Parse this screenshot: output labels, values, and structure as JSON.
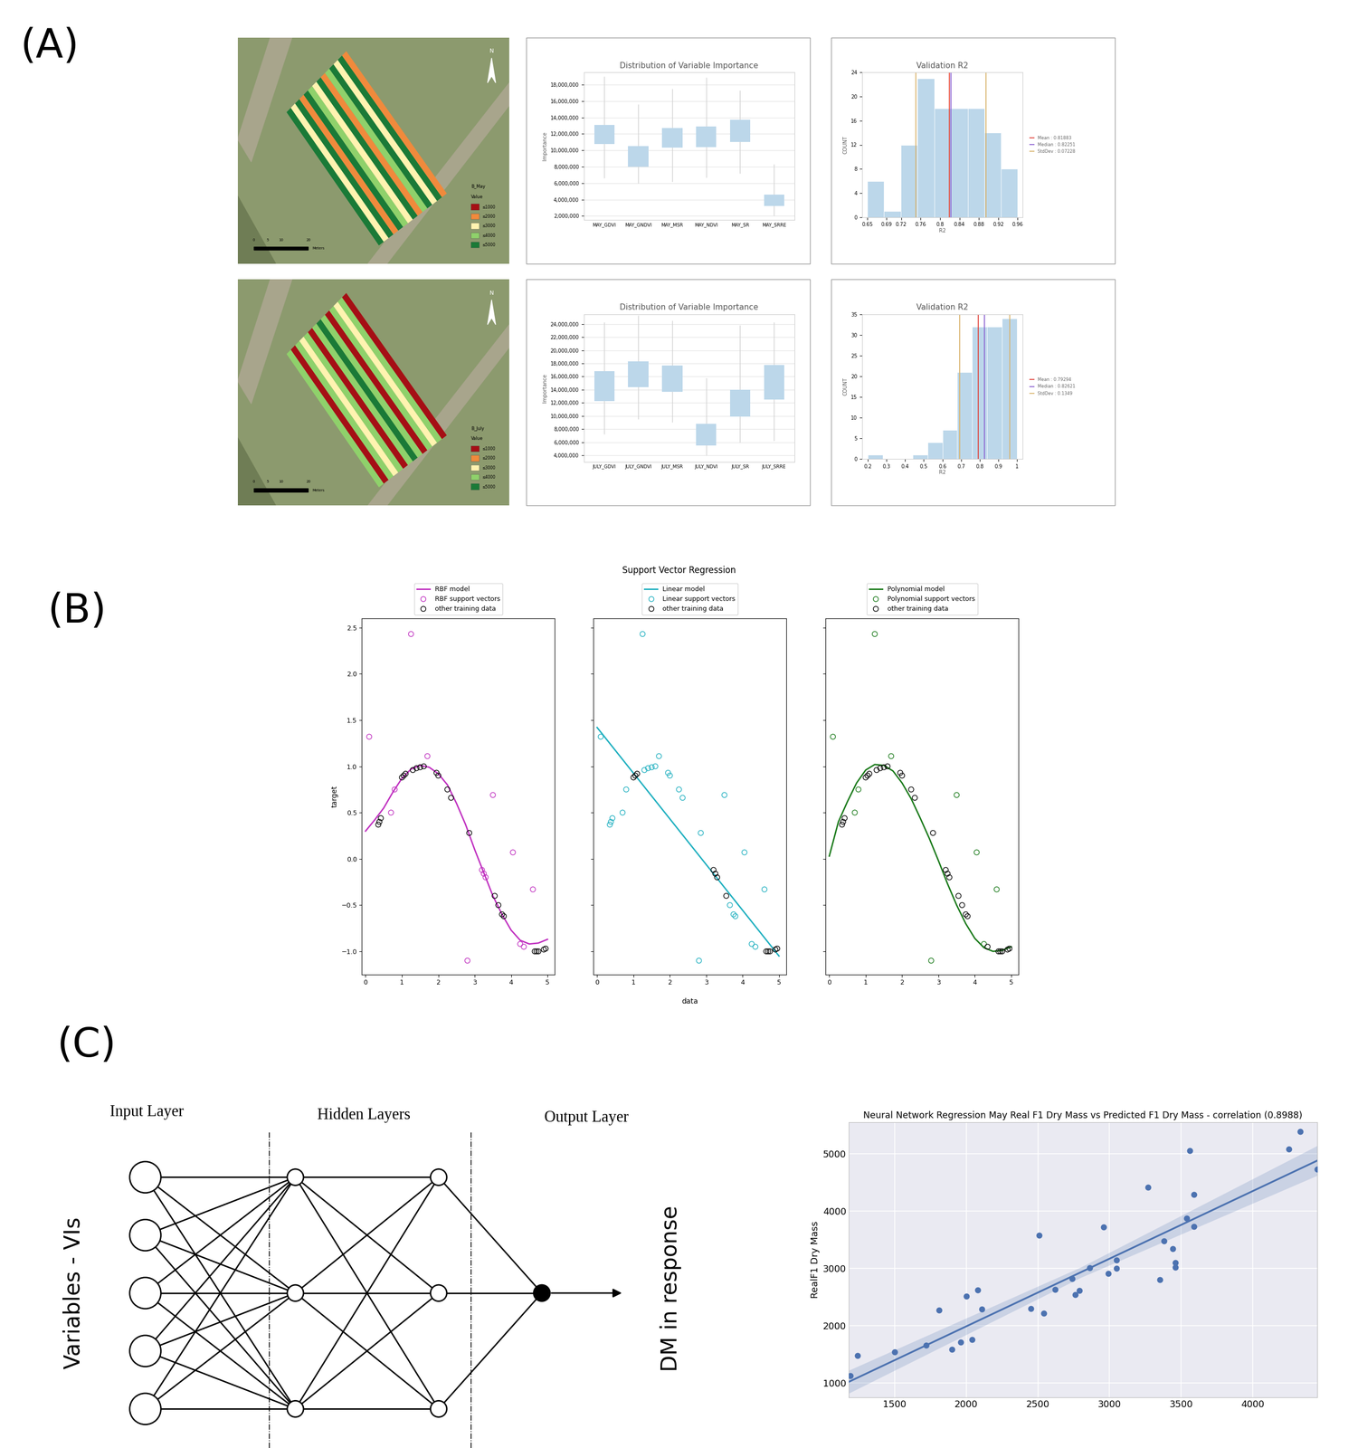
{
  "panel_labels": [
    "(A)",
    "(B)",
    "(C)"
  ],
  "maps": [
    {
      "legend_title": "B_May",
      "value_title": "Value",
      "north": "N",
      "scale_bar": {
        "ticks": [
          0,
          5,
          10,
          20
        ],
        "unit": "Meters"
      },
      "classes": [
        {
          "label": "≤1000",
          "color": "#a50f15"
        },
        {
          "label": "≤2000",
          "color": "#f08a3c"
        },
        {
          "label": "≤3000",
          "color": "#fff3b0"
        },
        {
          "label": "≤4000",
          "color": "#8fd16b"
        },
        {
          "label": "≤5000",
          "color": "#1a7a37"
        }
      ]
    },
    {
      "legend_title": "B_July",
      "value_title": "Value",
      "north": "N",
      "scale_bar": {
        "ticks": [
          0,
          5,
          10,
          20
        ],
        "unit": "Meters"
      },
      "classes": [
        {
          "label": "≤1000",
          "color": "#a50f15"
        },
        {
          "label": "≤2000",
          "color": "#f08a3c"
        },
        {
          "label": "≤3000",
          "color": "#fff3b0"
        },
        {
          "label": "≤4000",
          "color": "#8fd16b"
        },
        {
          "label": "≤5000",
          "color": "#1a7a37"
        }
      ]
    }
  ],
  "svr_title": "Support Vector Regression",
  "chart_data": [
    {
      "type": "box",
      "title": "Distribution of Variable Importance",
      "ylabel": "Importance",
      "categories": [
        "MAY_GDVI",
        "MAY_GNDVI",
        "MAY_MSR",
        "MAY_NDVI",
        "MAY_SR",
        "MAY_SRRE"
      ],
      "q1": [
        10800000,
        8000000,
        10300000,
        10400000,
        11000000,
        3200000
      ],
      "q3": [
        13100000,
        10500000,
        12700000,
        12900000,
        13700000,
        4600000
      ],
      "whisker_low": [
        6600000,
        6000000,
        6200000,
        6700000,
        7200000,
        2000000
      ],
      "whisker_high": [
        19000000,
        15600000,
        17500000,
        18900000,
        17300000,
        8300000
      ],
      "color": "#bcd7ea",
      "grid": true,
      "ylim": [
        1500000,
        19500000
      ],
      "yticks": [
        {
          "value": 2000000,
          "label": "2,000,000"
        },
        {
          "value": 4000000,
          "label": "4,000,000"
        },
        {
          "value": 6000000,
          "label": "6,000,000"
        },
        {
          "value": 8000000,
          "label": "8,000,000"
        },
        {
          "value": 10000000,
          "label": "10,000,000"
        },
        {
          "value": 12000000,
          "label": "12,000,000"
        },
        {
          "value": 14000000,
          "label": "14,000,000"
        },
        {
          "value": 16000000,
          "label": "16,000,000"
        },
        {
          "value": 18000000,
          "label": "18,000,000"
        }
      ]
    },
    {
      "type": "histogram",
      "title": "Validation R2",
      "xlabel": "R2",
      "ylabel": "COUNT",
      "bins": [
        0.65,
        0.684,
        0.719,
        0.753,
        0.788,
        0.822,
        0.857,
        0.891,
        0.926,
        0.96
      ],
      "counts": [
        6,
        1,
        12,
        23,
        18,
        18,
        18,
        14,
        8
      ],
      "color": "#bcd7ea",
      "grid": false,
      "xlim": [
        0.64,
        0.97
      ],
      "xticks": [
        0.65,
        0.69,
        0.72,
        0.76,
        0.8,
        0.84,
        0.88,
        0.92,
        0.96
      ],
      "ylim": [
        0,
        24
      ],
      "yticks": [
        0,
        4,
        8,
        12,
        16,
        20,
        24
      ],
      "legend": "right",
      "reference_lines": [
        {
          "name": "Mean : 0.81883",
          "values": [
            0.81883
          ],
          "color": "#e0423a"
        },
        {
          "name": "Median : 0.82251",
          "values": [
            0.82251
          ],
          "color": "#8a5fd0"
        },
        {
          "name": "StdDev : 0.07228",
          "values": [
            0.75023,
            0.89479
          ],
          "color": "#d8b26a"
        }
      ]
    },
    {
      "type": "box",
      "title": "Distribution of Variable Importance",
      "ylabel": "Importance",
      "categories": [
        "JULY_GDVI",
        "JULY_GNDVI",
        "JULY_MSR",
        "JULY_NDVI",
        "JULY_SR",
        "JULY_SRRE"
      ],
      "q1": [
        12300000,
        14400000,
        13700000,
        5500000,
        9900000,
        12500000
      ],
      "q3": [
        16800000,
        18300000,
        17700000,
        8800000,
        14000000,
        17800000
      ],
      "whisker_low": [
        7200000,
        9500000,
        9000000,
        4000000,
        6000000,
        6200000
      ],
      "whisker_high": [
        24300000,
        25300000,
        24500000,
        15800000,
        23800000,
        24300000
      ],
      "color": "#bcd7ea",
      "grid": true,
      "ylim": [
        3000000,
        25500000
      ],
      "yticks": [
        {
          "value": 4000000,
          "label": "4,000,000"
        },
        {
          "value": 6000000,
          "label": "6,000,000"
        },
        {
          "value": 8000000,
          "label": "8,000,000"
        },
        {
          "value": 10000000,
          "label": "10,000,000"
        },
        {
          "value": 12000000,
          "label": "12,000,000"
        },
        {
          "value": 14000000,
          "label": "14,000,000"
        },
        {
          "value": 16000000,
          "label": "16,000,000"
        },
        {
          "value": 18000000,
          "label": "18,000,000"
        },
        {
          "value": 20000000,
          "label": "20,000,000"
        },
        {
          "value": 22000000,
          "label": "22,000,000"
        },
        {
          "value": 24000000,
          "label": "24,000,000"
        }
      ]
    },
    {
      "type": "histogram",
      "title": "Validation R2",
      "xlabel": "R2",
      "ylabel": "COUNT",
      "bins": [
        0.2,
        0.28,
        0.36,
        0.44,
        0.52,
        0.6,
        0.68,
        0.76,
        0.84,
        0.92,
        1.0
      ],
      "counts": [
        1,
        0,
        0,
        1,
        4,
        7,
        21,
        32,
        32,
        34
      ],
      "color": "#bcd7ea",
      "grid": false,
      "xlim": [
        0.17,
        1.03
      ],
      "xticks": [
        0.2,
        0.3,
        0.4,
        0.5,
        0.6,
        0.7,
        0.8,
        0.9,
        1
      ],
      "ylim": [
        0,
        35
      ],
      "yticks": [
        0,
        5,
        10,
        15,
        20,
        25,
        30,
        35
      ],
      "legend": "right",
      "reference_lines": [
        {
          "name": "Mean : 0.79294",
          "values": [
            0.79294
          ],
          "color": "#e0423a"
        },
        {
          "name": "Median : 0.82621",
          "values": [
            0.82621
          ],
          "color": "#8a5fd0"
        },
        {
          "name": "StdDev : 0.1349",
          "values": [
            0.69131,
            0.96111
          ],
          "color": "#d8b26a"
        }
      ]
    },
    {
      "type": "scatter",
      "ylabel": "target",
      "color": "#c030c0",
      "legend": "top",
      "grid": false,
      "model": {
        "name": "RBF model",
        "x": [
          0,
          0.25,
          0.5,
          0.75,
          1.0,
          1.25,
          1.5,
          1.75,
          2.0,
          2.25,
          2.5,
          2.75,
          3.0,
          3.25,
          3.5,
          3.75,
          4.0,
          4.25,
          4.5,
          4.75,
          5.0
        ],
        "y": [
          0.3,
          0.42,
          0.55,
          0.72,
          0.87,
          0.97,
          1.01,
          0.99,
          0.92,
          0.8,
          0.6,
          0.37,
          0.1,
          -0.15,
          -0.4,
          -0.6,
          -0.77,
          -0.88,
          -0.92,
          -0.91,
          -0.87
        ]
      },
      "support_vectors": {
        "name": "RBF support vectors",
        "x": [
          0.1,
          0.7,
          0.8,
          1.25,
          1.7,
          2.8,
          3.2,
          3.25,
          3.3,
          3.5,
          4.05,
          4.25,
          4.35,
          4.6
        ],
        "y": [
          1.32,
          0.5,
          0.75,
          2.43,
          1.11,
          -1.1,
          -0.12,
          -0.16,
          -0.2,
          0.69,
          0.07,
          -0.92,
          -0.95,
          -0.33
        ]
      },
      "other_training_data": {
        "name": "other training data",
        "x": [
          0.35,
          0.38,
          0.42,
          1.0,
          1.05,
          1.1,
          1.3,
          1.4,
          1.5,
          1.6,
          1.95,
          2.0,
          2.25,
          2.35,
          2.85,
          3.55,
          3.65,
          3.75,
          3.8,
          4.65,
          4.7,
          4.75,
          4.9,
          4.95
        ],
        "y": [
          0.37,
          0.4,
          0.44,
          0.88,
          0.9,
          0.92,
          0.96,
          0.98,
          0.99,
          1.0,
          0.93,
          0.9,
          0.75,
          0.66,
          0.28,
          -0.4,
          -0.5,
          -0.6,
          -0.62,
          -1.0,
          -1.0,
          -1.0,
          -0.98,
          -0.97
        ]
      },
      "xlim": [
        -0.1,
        5.2
      ],
      "xticks": [
        0,
        1,
        2,
        3,
        4,
        5
      ],
      "ylim": [
        -1.25,
        2.6
      ],
      "yticks": [
        {
          "value": -1.0,
          "label": "−1.0"
        },
        {
          "value": -0.5,
          "label": "−0.5"
        },
        0.0,
        0.5,
        1.0,
        1.5,
        2.0,
        2.5
      ]
    },
    {
      "type": "scatter",
      "xlabel": "data",
      "color": "#20b0c0",
      "legend": "top",
      "grid": false,
      "tick_labels": "x",
      "model": {
        "name": "Linear model",
        "x": [
          0,
          5
        ],
        "y": [
          1.42,
          -1.05
        ]
      },
      "support_vectors": {
        "name": "Linear support vectors",
        "x": [
          0.1,
          0.35,
          0.38,
          0.42,
          0.7,
          0.8,
          1.25,
          1.3,
          1.4,
          1.5,
          1.6,
          1.7,
          1.95,
          2.0,
          2.25,
          2.35,
          2.8,
          2.85,
          3.5,
          3.65,
          3.75,
          3.8,
          4.05,
          4.25,
          4.35,
          4.6
        ],
        "y": [
          1.32,
          0.37,
          0.4,
          0.44,
          0.5,
          0.75,
          2.43,
          0.96,
          0.98,
          0.99,
          1.0,
          1.11,
          0.93,
          0.9,
          0.75,
          0.66,
          -1.1,
          0.28,
          0.69,
          -0.5,
          -0.6,
          -0.62,
          0.07,
          -0.92,
          -0.95,
          -0.33
        ]
      },
      "other_training_data": {
        "name": "other training data",
        "x": [
          1.0,
          1.05,
          1.1,
          3.2,
          3.25,
          3.3,
          3.55,
          4.65,
          4.7,
          4.75,
          4.9,
          4.95
        ],
        "y": [
          0.88,
          0.9,
          0.92,
          -0.12,
          -0.16,
          -0.2,
          -0.4,
          -1.0,
          -1.0,
          -1.0,
          -0.98,
          -0.97
        ]
      },
      "xlim": [
        -0.1,
        5.2
      ],
      "xticks": [
        0,
        1,
        2,
        3,
        4,
        5
      ],
      "ylim": [
        -1.25,
        2.6
      ],
      "yticks": [
        {
          "value": -1.0,
          "label": "−1.0"
        },
        {
          "value": -0.5,
          "label": "−0.5"
        },
        0.0,
        0.5,
        1.0,
        1.5,
        2.0,
        2.5
      ]
    },
    {
      "type": "scatter",
      "color": "#1a7a1a",
      "legend": "top",
      "grid": false,
      "tick_labels": "x",
      "model": {
        "name": "Polynomial model",
        "x": [
          0,
          0.25,
          0.5,
          0.75,
          1.0,
          1.25,
          1.5,
          1.75,
          2.0,
          2.25,
          2.5,
          2.75,
          3.0,
          3.25,
          3.5,
          3.75,
          4.0,
          4.25,
          4.5,
          4.75,
          5.0
        ],
        "y": [
          0.03,
          0.4,
          0.62,
          0.82,
          0.96,
          1.02,
          1.01,
          0.95,
          0.82,
          0.65,
          0.44,
          0.22,
          -0.02,
          -0.27,
          -0.5,
          -0.7,
          -0.86,
          -0.96,
          -1.0,
          -0.99,
          -0.95
        ]
      },
      "support_vectors": {
        "name": "Polynomial support vectors",
        "x": [
          0.1,
          0.7,
          0.8,
          1.25,
          1.7,
          2.8,
          3.5,
          4.05,
          4.25,
          4.6
        ],
        "y": [
          1.32,
          0.5,
          0.75,
          2.43,
          1.11,
          -1.1,
          0.69,
          0.07,
          -0.92,
          -0.33
        ]
      },
      "other_training_data": {
        "name": "other training data",
        "x": [
          0.35,
          0.38,
          0.42,
          1.0,
          1.05,
          1.1,
          1.3,
          1.4,
          1.5,
          1.6,
          1.95,
          2.0,
          2.25,
          2.35,
          2.85,
          3.2,
          3.25,
          3.3,
          3.55,
          3.65,
          3.75,
          3.8,
          4.35,
          4.65,
          4.7,
          4.75,
          4.9,
          4.95
        ],
        "y": [
          0.37,
          0.4,
          0.44,
          0.88,
          0.9,
          0.92,
          0.96,
          0.98,
          0.99,
          1.0,
          0.93,
          0.9,
          0.75,
          0.66,
          0.28,
          -0.12,
          -0.16,
          -0.2,
          -0.4,
          -0.5,
          -0.6,
          -0.62,
          -0.95,
          -1.0,
          -1.0,
          -1.0,
          -0.98,
          -0.97
        ]
      },
      "xlim": [
        -0.1,
        5.2
      ],
      "xticks": [
        0,
        1,
        2,
        3,
        4,
        5
      ],
      "ylim": [
        -1.25,
        2.6
      ],
      "yticks": [
        {
          "value": -1.0,
          "label": "−1.0"
        },
        {
          "value": -0.5,
          "label": "−0.5"
        },
        0.0,
        0.5,
        1.0,
        1.5,
        2.0,
        2.5
      ]
    },
    {
      "type": "scatter",
      "title": "Neural Network Regression May Real F1 Dry Mass vs Predicted F1 Dry Mass - correlation (0.8988)",
      "ylabel": "RealF1 Dry Mass",
      "color": "#4c72b0",
      "grid": true,
      "x": [
        1190,
        1240,
        1500,
        1720,
        1810,
        1900,
        1960,
        2000,
        2040,
        2080,
        2110,
        2450,
        2510,
        2540,
        2620,
        2740,
        2760,
        2790,
        2860,
        2960,
        2990,
        3050,
        3050,
        3270,
        3350,
        3380,
        3440,
        3460,
        3460,
        3540,
        3560,
        3590,
        3590,
        4250,
        4330,
        4450
      ],
      "y": [
        1130,
        1480,
        1540,
        1660,
        2270,
        1590,
        1710,
        2510,
        1760,
        2620,
        2290,
        2300,
        3580,
        2220,
        2630,
        2820,
        2540,
        2610,
        3010,
        3720,
        2910,
        3000,
        3140,
        4410,
        2800,
        3480,
        3340,
        3100,
        3020,
        3870,
        5050,
        4290,
        3730,
        5080,
        5390,
        4730
      ],
      "fit": {
        "x": [
          1180,
          4450
        ],
        "y": [
          1020,
          4880
        ]
      },
      "confidence_band": {
        "x": [
          1180,
          2800,
          4450
        ],
        "lower": [
          820,
          2840,
          4620
        ],
        "upper": [
          1220,
          3020,
          5140
        ]
      },
      "xlim": [
        1180,
        4450
      ],
      "xticks": [
        1500,
        2000,
        2500,
        3000,
        3500,
        4000
      ],
      "ylim": [
        750,
        5550
      ],
      "yticks": [
        1000,
        2000,
        3000,
        4000,
        5000
      ]
    }
  ],
  "diagram": {
    "layers": [
      {
        "label": "Input Layer",
        "nodes": [
          5
        ]
      },
      {
        "label": "Hidden Layers",
        "nodes": [
          3,
          3
        ]
      },
      {
        "label": "Output Layer",
        "nodes": [
          1
        ]
      }
    ],
    "input_label": "Variables - VIs",
    "output_label": "DM in response"
  }
}
